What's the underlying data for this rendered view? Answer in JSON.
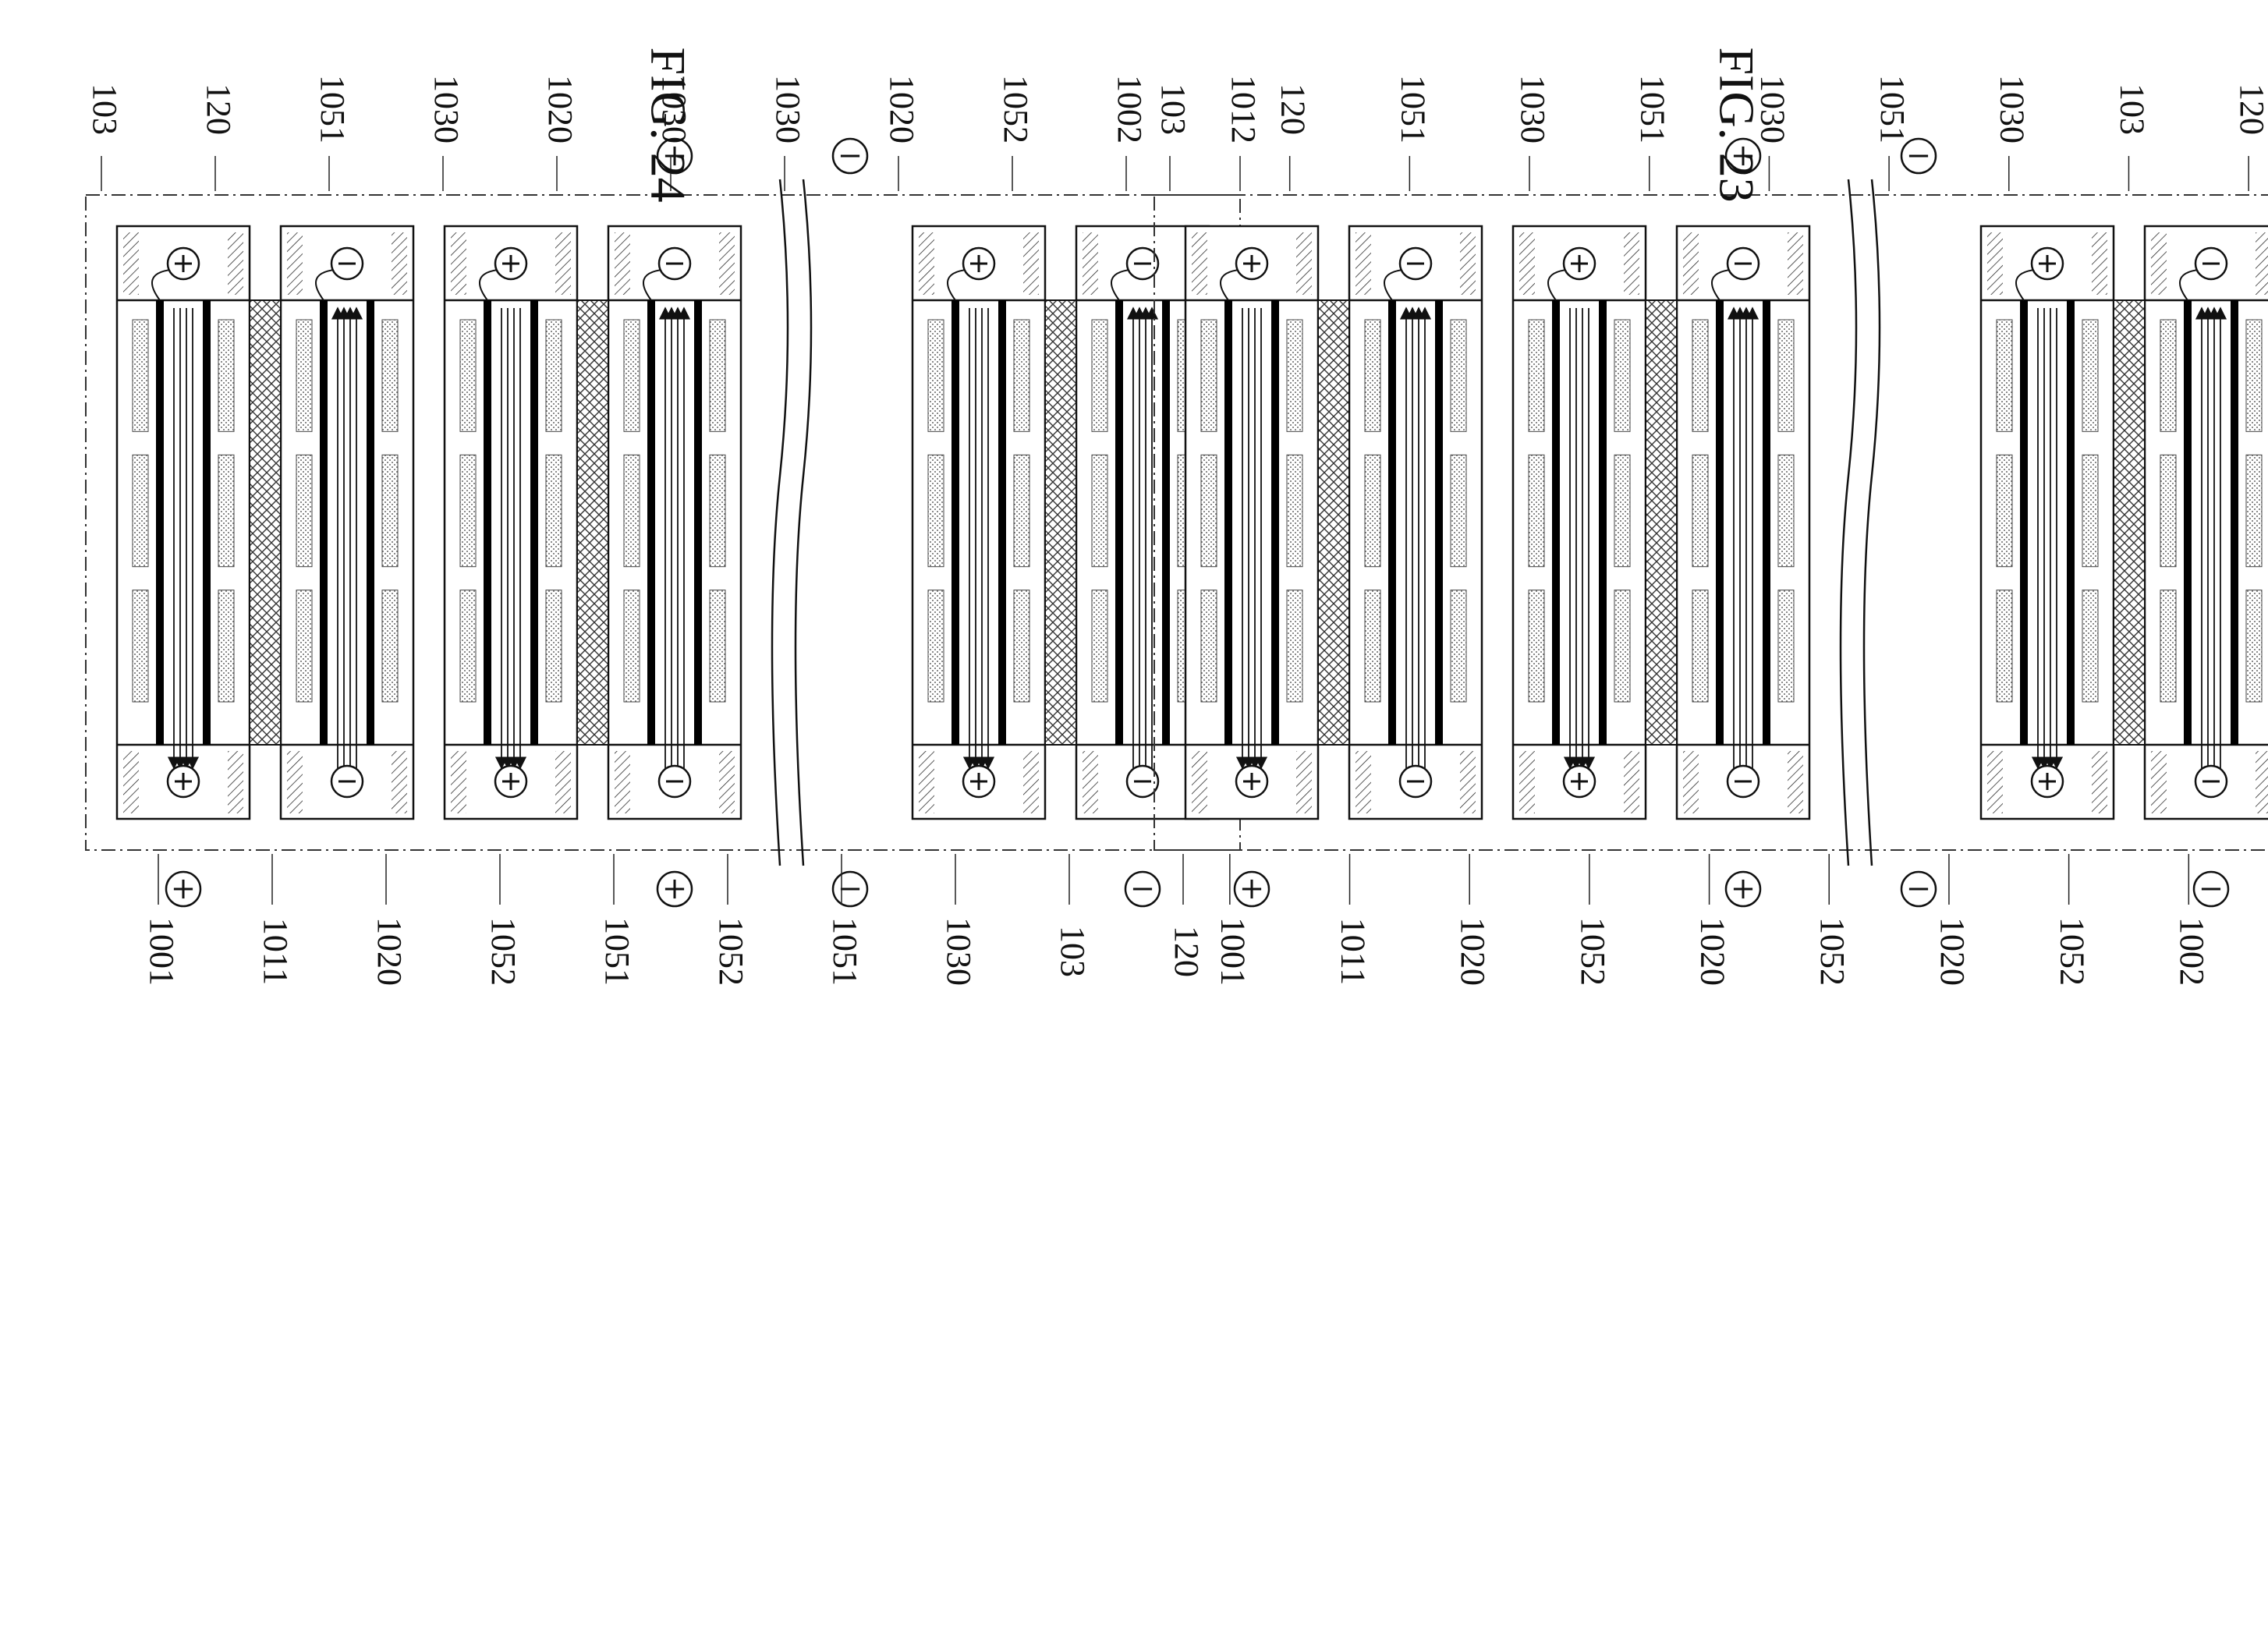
{
  "figures": [
    {
      "id": "fig23",
      "title": "FIG. 23",
      "units": [
        {
          "top": "+",
          "bottom": "+"
        },
        {
          "top": "−",
          "bottom": "−"
        },
        {
          "top": "+",
          "bottom": "+"
        },
        {
          "top": "−",
          "bottom": "−"
        },
        {
          "top": "+",
          "bottom": "+"
        },
        {
          "top": "−",
          "bottom": "−"
        }
      ],
      "terminals": [
        "+",
        "+",
        "+",
        "−",
        "−",
        "−"
      ],
      "labels": [
        "103",
        "1001",
        "120",
        "1011",
        "1051",
        "1020",
        "1030",
        "1052",
        "1051",
        "1020",
        "1030",
        "1052",
        "1051",
        "1020",
        "1030",
        "1052",
        "103",
        "1002",
        "120",
        "1012"
      ]
    },
    {
      "id": "fig24",
      "title": "FIG. 24",
      "units": [
        {
          "top": "+",
          "bottom": "+"
        },
        {
          "top": "−",
          "bottom": "−"
        },
        {
          "top": "+",
          "bottom": "+"
        },
        {
          "top": "−",
          "bottom": "−"
        },
        {
          "top": "+",
          "bottom": "+"
        },
        {
          "top": "−",
          "bottom": "−"
        }
      ],
      "terminals": [
        "+",
        "+",
        "+",
        "−",
        "−",
        "−"
      ],
      "labels": [
        "103",
        "1001",
        "120",
        "1011",
        "1051",
        "1020",
        "1030",
        "1052",
        "1020",
        "1051",
        "1030",
        "1052",
        "1030",
        "1051",
        "1020",
        "1030",
        "1052",
        "103",
        "1002",
        "120",
        "1012"
      ]
    }
  ]
}
